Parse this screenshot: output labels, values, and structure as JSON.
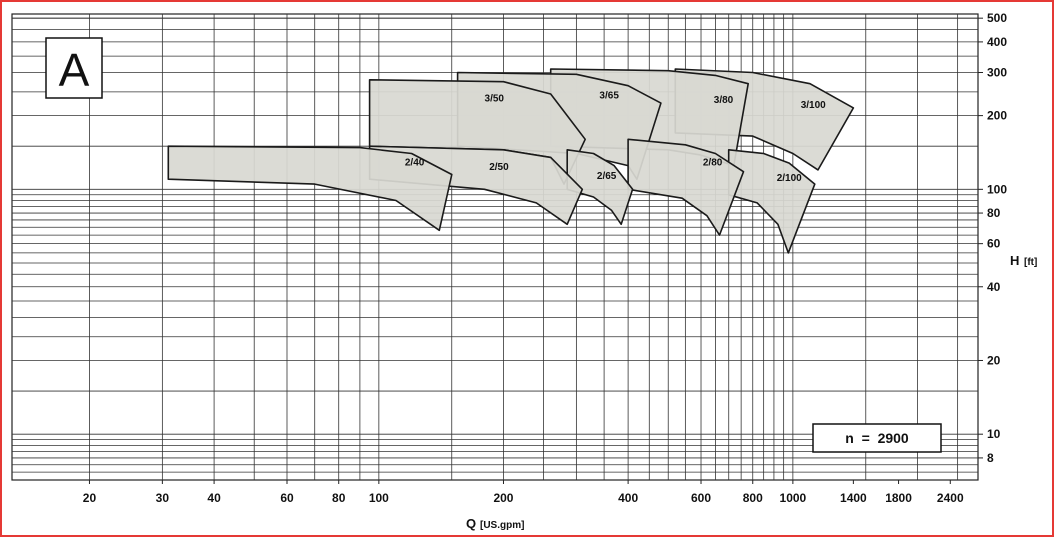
{
  "chart_data": {
    "type": "area",
    "panel_label": "A",
    "xlabel": {
      "symbol": "Q",
      "unit": "[US.gpm]"
    },
    "ylabel": {
      "symbol": "H",
      "unit": "[ft]"
    },
    "x_scale": "log",
    "y_scale": "log",
    "xlim": [
      13,
      2800
    ],
    "ylim": [
      6.5,
      520
    ],
    "x_ticks": [
      "20",
      "30",
      "40",
      "60",
      "80",
      "100",
      "200",
      "400",
      "600",
      "800",
      "1000",
      "1400",
      "1800",
      "2400"
    ],
    "x_tick_values": [
      20,
      30,
      40,
      60,
      80,
      100,
      200,
      400,
      600,
      800,
      1000,
      1400,
      1800,
      2400
    ],
    "y_ticks": [
      "500",
      "400",
      "300",
      "200",
      "100",
      "80",
      "60",
      "40",
      "20",
      "10",
      "8"
    ],
    "y_tick_values": [
      500,
      400,
      300,
      200,
      100,
      80,
      60,
      40,
      20,
      10,
      8
    ],
    "grid": true,
    "annotation": "n  =  2900",
    "series": [
      {
        "name": "2/40",
        "x_range": [
          31,
          140
        ],
        "top": [
          [
            31,
            150
          ],
          [
            90,
            148
          ],
          [
            120,
            140
          ],
          [
            150,
            115
          ]
        ],
        "bottom": [
          [
            31,
            110
          ],
          [
            70,
            105
          ],
          [
            110,
            90
          ],
          [
            140,
            68
          ]
        ],
        "label_at": [
          122,
          125
        ]
      },
      {
        "name": "2/50",
        "x_range": [
          95,
          300
        ],
        "top": [
          [
            95,
            150
          ],
          [
            200,
            145
          ],
          [
            260,
            135
          ],
          [
            310,
            100
          ]
        ],
        "bottom": [
          [
            95,
            110
          ],
          [
            180,
            100
          ],
          [
            240,
            88
          ],
          [
            285,
            72
          ]
        ],
        "label_at": [
          195,
          120
        ]
      },
      {
        "name": "2/65",
        "x_range": [
          285,
          400
        ],
        "top": [
          [
            285,
            145
          ],
          [
            330,
            140
          ],
          [
            370,
            125
          ],
          [
            410,
            100
          ]
        ],
        "bottom": [
          [
            285,
            100
          ],
          [
            330,
            93
          ],
          [
            365,
            82
          ],
          [
            385,
            72
          ]
        ],
        "label_at": [
          355,
          110
        ]
      },
      {
        "name": "2/80",
        "x_range": [
          400,
          700
        ],
        "top": [
          [
            400,
            160
          ],
          [
            550,
            152
          ],
          [
            650,
            140
          ],
          [
            760,
            118
          ]
        ],
        "bottom": [
          [
            400,
            100
          ],
          [
            540,
            92
          ],
          [
            620,
            78
          ],
          [
            665,
            65
          ]
        ],
        "label_at": [
          640,
          125
        ]
      },
      {
        "name": "2/100",
        "x_range": [
          700,
          1100
        ],
        "top": [
          [
            700,
            145
          ],
          [
            850,
            140
          ],
          [
            980,
            128
          ],
          [
            1130,
            105
          ]
        ],
        "bottom": [
          [
            700,
            95
          ],
          [
            820,
            88
          ],
          [
            920,
            72
          ],
          [
            975,
            55
          ]
        ],
        "label_at": [
          980,
          108
        ]
      },
      {
        "name": "3/50",
        "x_range": [
          95,
          300
        ],
        "top": [
          [
            95,
            280
          ],
          [
            200,
            275
          ],
          [
            260,
            245
          ],
          [
            315,
            160
          ]
        ],
        "bottom": [
          [
            95,
            150
          ],
          [
            200,
            145
          ],
          [
            260,
            135
          ],
          [
            280,
            105
          ]
        ],
        "label_at": [
          190,
          228
        ]
      },
      {
        "name": "3/65",
        "x_range": [
          155,
          480
        ],
        "top": [
          [
            155,
            300
          ],
          [
            300,
            295
          ],
          [
            400,
            265
          ],
          [
            480,
            225
          ]
        ],
        "bottom": [
          [
            155,
            150
          ],
          [
            300,
            140
          ],
          [
            400,
            125
          ],
          [
            420,
            110
          ]
        ],
        "label_at": [
          360,
          235
        ]
      },
      {
        "name": "3/80",
        "x_range": [
          260,
          780
        ],
        "top": [
          [
            260,
            310
          ],
          [
            500,
            305
          ],
          [
            650,
            292
          ],
          [
            780,
            270
          ]
        ],
        "bottom": [
          [
            260,
            150
          ],
          [
            500,
            145
          ],
          [
            600,
            138
          ],
          [
            720,
            125
          ]
        ],
        "label_at": [
          680,
          225
        ]
      },
      {
        "name": "3/100",
        "x_range": [
          520,
          1400
        ],
        "top": [
          [
            520,
            310
          ],
          [
            800,
            300
          ],
          [
            1100,
            270
          ],
          [
            1400,
            215
          ]
        ],
        "bottom": [
          [
            520,
            170
          ],
          [
            800,
            165
          ],
          [
            1000,
            140
          ],
          [
            1150,
            120
          ]
        ],
        "label_at": [
          1120,
          215
        ]
      }
    ]
  }
}
